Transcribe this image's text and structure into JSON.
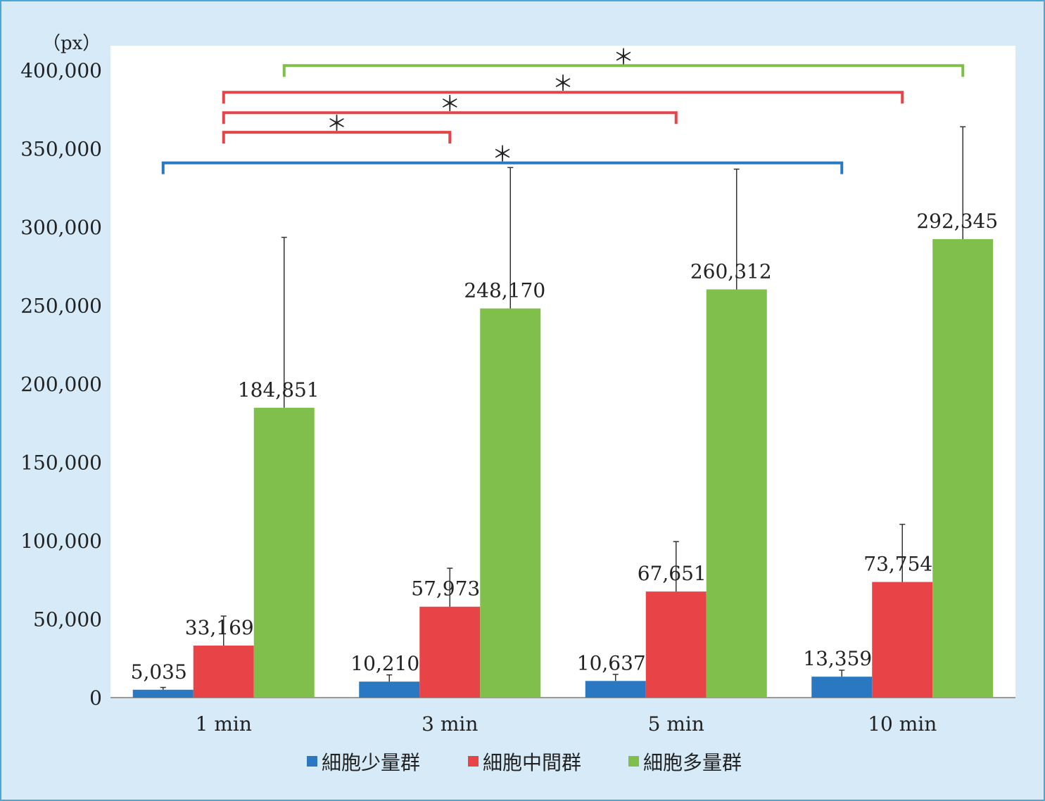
{
  "chart_data": {
    "type": "bar",
    "unit_label": "（px）",
    "categories": [
      "1 min",
      "3 min",
      "5 min",
      "10 min"
    ],
    "ylim": [
      0,
      400000
    ],
    "yticks": [
      "0",
      "50,000",
      "100,000",
      "150,000",
      "200,000",
      "250,000",
      "300,000",
      "350,000",
      "400,000"
    ],
    "ytick_values": [
      0,
      50000,
      100000,
      150000,
      200000,
      250000,
      300000,
      350000,
      400000
    ],
    "legend_position": "bottom",
    "series": [
      {
        "name": "細胞少量群",
        "color": "#2a78c2",
        "values": [
          5035,
          10210,
          10637,
          13359
        ],
        "labels": [
          "5,035",
          "10,210",
          "10,637",
          "13,359"
        ],
        "error_upper": [
          6500,
          14500,
          14800,
          17500
        ]
      },
      {
        "name": "細胞中間群",
        "color": "#e84346",
        "values": [
          33169,
          57973,
          67651,
          73754
        ],
        "labels": [
          "33,169",
          "57,973",
          "67,651",
          "73,754"
        ],
        "error_upper": [
          52000,
          82500,
          99500,
          110500
        ]
      },
      {
        "name": "細胞多量群",
        "color": "#80bf4b",
        "values": [
          184851,
          248170,
          260312,
          292345
        ],
        "labels": [
          "184,851",
          "248,170",
          "260,312",
          "292,345"
        ],
        "error_upper": [
          293500,
          338000,
          337000,
          364000
        ]
      }
    ],
    "significance": [
      {
        "series": 2,
        "from": 0,
        "to": 3,
        "y_value": 403000,
        "label": "＊",
        "color": "#80bf4b"
      },
      {
        "series": 1,
        "from": 0,
        "to": 3,
        "y_value": 386000,
        "label": "＊",
        "color": "#e84346"
      },
      {
        "series": 1,
        "from": 0,
        "to": 2,
        "y_value": 373000,
        "label": "＊",
        "color": "#e84346"
      },
      {
        "series": 1,
        "from": 0,
        "to": 1,
        "y_value": 360500,
        "label": "＊",
        "color": "#e84346"
      },
      {
        "series": 0,
        "from": 0,
        "to": 3,
        "y_value": 341000,
        "label": "＊",
        "color": "#2a78c2"
      }
    ]
  }
}
